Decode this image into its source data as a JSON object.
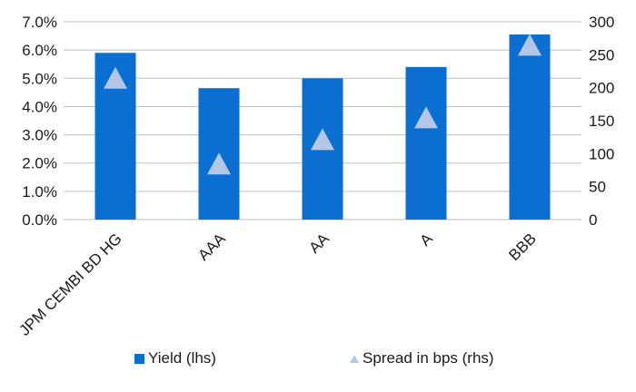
{
  "chart_data": {
    "type": "bar",
    "categories": [
      "JPM CEMBI BD HG",
      "AAA",
      "AA",
      "A",
      "BBB"
    ],
    "series": [
      {
        "name": "Yield (lhs)",
        "type": "bar",
        "axis": "left",
        "values": [
          5.9,
          4.65,
          5.0,
          5.4,
          6.55
        ]
      },
      {
        "name": "Spread in bps (rhs)",
        "type": "marker-triangle",
        "axis": "right",
        "values": [
          215,
          85,
          122,
          155,
          265
        ]
      }
    ],
    "y_left": {
      "ticks": [
        "0.0%",
        "1.0%",
        "2.0%",
        "3.0%",
        "4.0%",
        "5.0%",
        "6.0%",
        "7.0%"
      ],
      "ylim": [
        0,
        7
      ]
    },
    "y_right": {
      "ticks": [
        "0",
        "50",
        "100",
        "150",
        "200",
        "250",
        "300"
      ],
      "ylim": [
        0,
        300
      ]
    },
    "grid": true,
    "legend_position": "bottom",
    "colors": {
      "bar": "#0a6fd1",
      "marker": "#b4c7e7",
      "grid": "#bfbfbf"
    }
  }
}
